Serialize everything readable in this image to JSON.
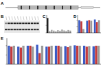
{
  "figure": {
    "panel_labels": [
      "A",
      "B",
      "C",
      "D",
      "E"
    ]
  },
  "chart_data": [
    {
      "type": "bar",
      "categories": [
        null,
        null,
        null,
        null,
        null,
        null,
        null,
        null,
        null,
        null,
        null,
        null
      ],
      "values": [
        1.0,
        0.12,
        0.2,
        0.15,
        0.1,
        0.18,
        0.14,
        0.22,
        0.16,
        0.12,
        0.19,
        0.15
      ],
      "colors": [
        "#111111",
        "#9a9a9a",
        "#9a9a9a",
        "#9a9a9a",
        "#9a9a9a",
        "#9a9a9a",
        "#9a9a9a",
        "#9a9a9a",
        "#9a9a9a",
        "#9a9a9a",
        "#9a9a9a",
        "#9a9a9a"
      ],
      "ylim": [
        0,
        1.2
      ],
      "yticks": [
        0,
        0.5,
        1
      ],
      "tick_labels": false
    },
    {
      "type": "bar",
      "categories": [
        null,
        null,
        null
      ],
      "series": [
        {
          "color": "#3b5bc4",
          "values": [
            1.0,
            0.95,
            1.05
          ]
        },
        {
          "color": "#c43b3b",
          "values": [
            0.9,
            1.0,
            0.85
          ]
        },
        {
          "color": "#9a9a9a",
          "values": [
            0.3,
            0.95,
            1.0
          ]
        }
      ],
      "ylim": [
        0,
        1.4
      ],
      "yticks": [
        0,
        0.5,
        1
      ],
      "tick_labels": false
    },
    {
      "type": "bar",
      "categories": [
        null,
        null,
        null,
        null,
        null,
        null,
        null,
        null,
        null,
        null
      ],
      "series": [
        {
          "color": "#3b5bc4",
          "values": [
            1.0,
            0.95,
            1.0,
            1.05,
            0.95,
            1.0,
            0.98,
            1.02,
            1.0,
            0.97
          ]
        },
        {
          "color": "#c43b3b",
          "values": [
            0.95,
            0.9,
            1.0,
            0.6,
            0.95,
            1.0,
            0.92,
            1.0,
            0.95,
            1.0
          ]
        },
        {
          "color": "#9a9a9a",
          "values": [
            1.0,
            1.0,
            0.95,
            1.0,
            1.0,
            0.95,
            1.0,
            1.0,
            0.98,
            1.0
          ]
        }
      ],
      "ylim": [
        0,
        1.4
      ],
      "yticks": [
        0,
        0.5,
        1
      ],
      "tick_labels": false
    }
  ]
}
